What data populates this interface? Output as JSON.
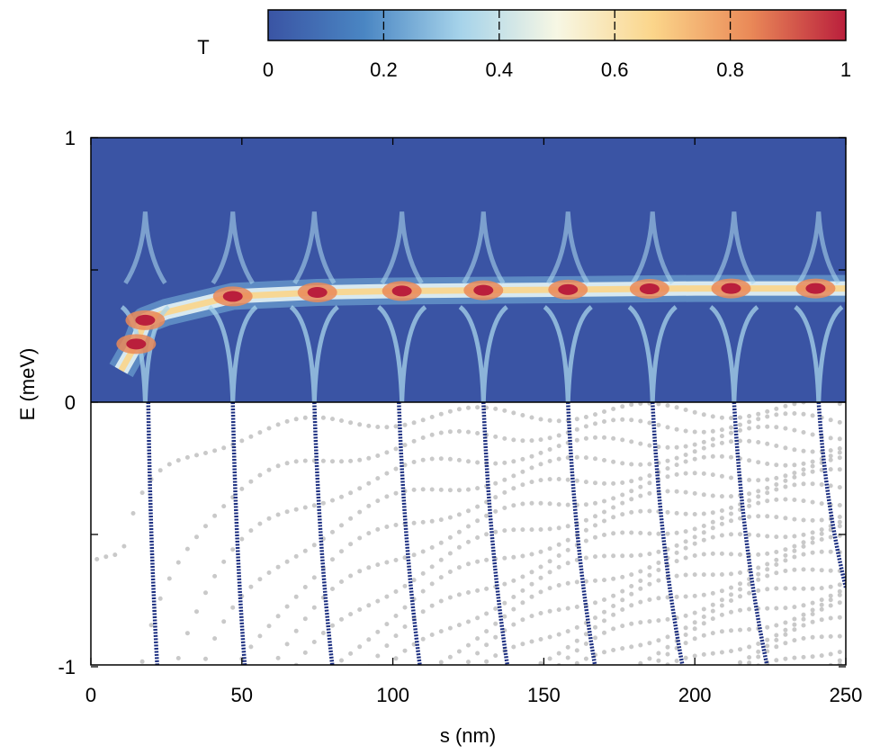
{
  "chart_data": {
    "type": "heatmap",
    "title": "",
    "xlabel": "s (nm)",
    "ylabel": "E (meV)",
    "xlim": [
      0,
      250
    ],
    "ylim": [
      -1,
      1
    ],
    "x_ticks": [
      "0",
      "50",
      "100",
      "150",
      "200",
      "250"
    ],
    "x_tick_values": [
      0,
      50,
      100,
      150,
      200,
      250
    ],
    "y_ticks": [
      "1",
      "0",
      "-1"
    ],
    "y_tick_values": [
      1,
      0,
      -1
    ],
    "y_minor_tick_values": [
      0.5,
      -0.5
    ],
    "colorbar": {
      "label": "T",
      "range": [
        0,
        1
      ],
      "ticks": [
        "0",
        "0.2",
        "0.4",
        "0.6",
        "0.8",
        "1"
      ],
      "tick_values": [
        0,
        0.2,
        0.4,
        0.6,
        0.8,
        1
      ],
      "colormap": [
        "#3a54a4",
        "#4a86c3",
        "#a6d3ea",
        "#f7f7e4",
        "#fbd58a",
        "#ea8a58",
        "#ba1f3c"
      ]
    },
    "upper_panel": {
      "description": "transmission T(s,E) for E in [0,1] meV",
      "band_center_meV": [
        {
          "s": 10,
          "E": 0.12
        },
        {
          "s": 15,
          "E": 0.22
        },
        {
          "s": 18,
          "E": 0.31
        },
        {
          "s": 25,
          "E": 0.34
        },
        {
          "s": 47,
          "E": 0.4
        },
        {
          "s": 75,
          "E": 0.415
        },
        {
          "s": 100,
          "E": 0.42
        },
        {
          "s": 150,
          "E": 0.425
        },
        {
          "s": 200,
          "E": 0.43
        },
        {
          "s": 250,
          "E": 0.43
        }
      ],
      "hot_spots_s": [
        15,
        18,
        47,
        75,
        103,
        130,
        158,
        185,
        212,
        240
      ],
      "cusp_s": [
        18,
        47,
        74,
        103,
        130,
        158,
        186,
        213,
        241
      ]
    },
    "lower_panel": {
      "description": "energy levels for E in [-1,0] meV",
      "series": [
        {
          "name": "highlighted levels",
          "color": "#1a2d80",
          "lines": [
            [
              [
                19,
                0
              ],
              [
                22,
                -1
              ]
            ],
            [
              [
                47,
                0
              ],
              [
                51,
                -1
              ]
            ],
            [
              [
                74,
                0
              ],
              [
                80,
                -1
              ]
            ],
            [
              [
                102,
                0
              ],
              [
                109,
                -1
              ]
            ],
            [
              [
                130,
                0
              ],
              [
                138,
                -1
              ]
            ],
            [
              [
                158,
                0
              ],
              [
                167,
                -1
              ]
            ],
            [
              [
                186,
                0
              ],
              [
                196,
                -1
              ]
            ],
            [
              [
                213,
                0
              ],
              [
                224,
                -1
              ]
            ],
            [
              [
                241,
                0
              ],
              [
                250,
                -0.7
              ]
            ]
          ]
        },
        {
          "name": "background levels",
          "color": "#c9c9c9"
        }
      ]
    }
  }
}
